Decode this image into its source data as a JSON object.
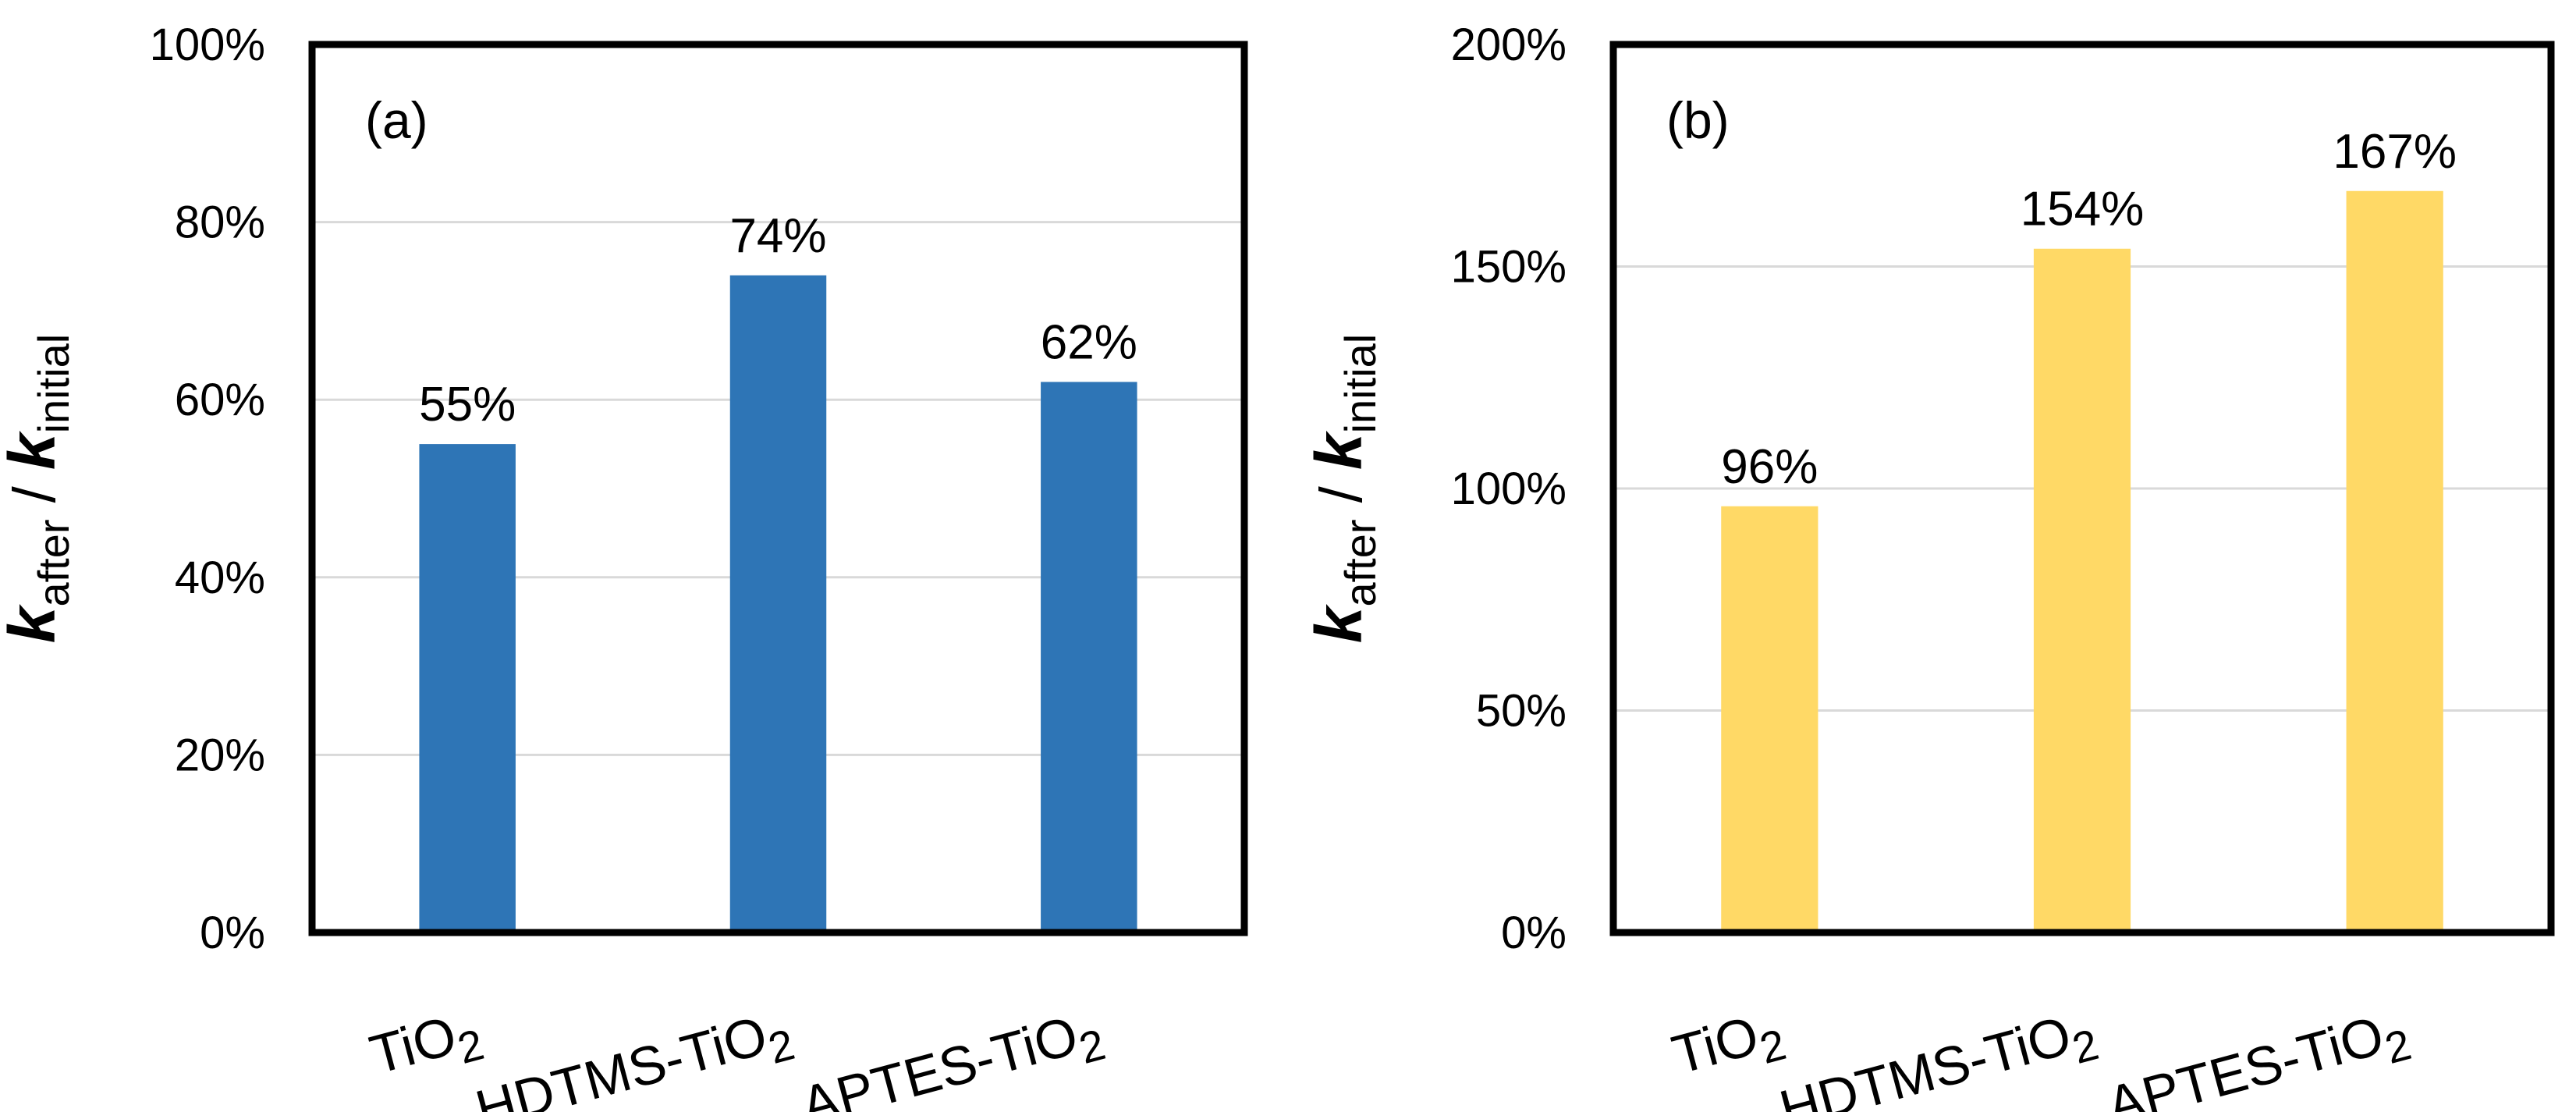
{
  "chart_data": [
    {
      "type": "bar",
      "panel_label": "(a)",
      "categories": [
        {
          "name": "TiO",
          "sub": "2"
        },
        {
          "name": "HDTMS-TiO",
          "sub": "2"
        },
        {
          "name": "APTES-TiO",
          "sub": "2"
        }
      ],
      "values": [
        55,
        74,
        62
      ],
      "data_labels": [
        "55%",
        "74%",
        "62%"
      ],
      "ylim": [
        0,
        100
      ],
      "yticks": [
        0,
        20,
        40,
        60,
        80,
        100
      ],
      "ytick_labels": [
        "0%",
        "20%",
        "40%",
        "60%",
        "80%",
        "100%"
      ],
      "ylabel": {
        "k1": "k",
        "s1": "after",
        "sep": " / ",
        "k2": "k",
        "s2": "initial"
      },
      "xlabel": "",
      "grid": true,
      "color": "#2E75B6"
    },
    {
      "type": "bar",
      "panel_label": "(b)",
      "categories": [
        {
          "name": "TiO",
          "sub": "2"
        },
        {
          "name": "HDTMS-TiO",
          "sub": "2"
        },
        {
          "name": "APTES-TiO",
          "sub": "2"
        }
      ],
      "values": [
        96,
        154,
        167
      ],
      "data_labels": [
        "96%",
        "154%",
        "167%"
      ],
      "ylim": [
        0,
        200
      ],
      "yticks": [
        0,
        50,
        100,
        150,
        200
      ],
      "ytick_labels": [
        "0%",
        "50%",
        "100%",
        "150%",
        "200%"
      ],
      "ylabel": {
        "k1": "k",
        "s1": "after",
        "sep": " / ",
        "k2": "k",
        "s2": "initial"
      },
      "xlabel": "",
      "grid": true,
      "color": "#FFD966"
    }
  ]
}
